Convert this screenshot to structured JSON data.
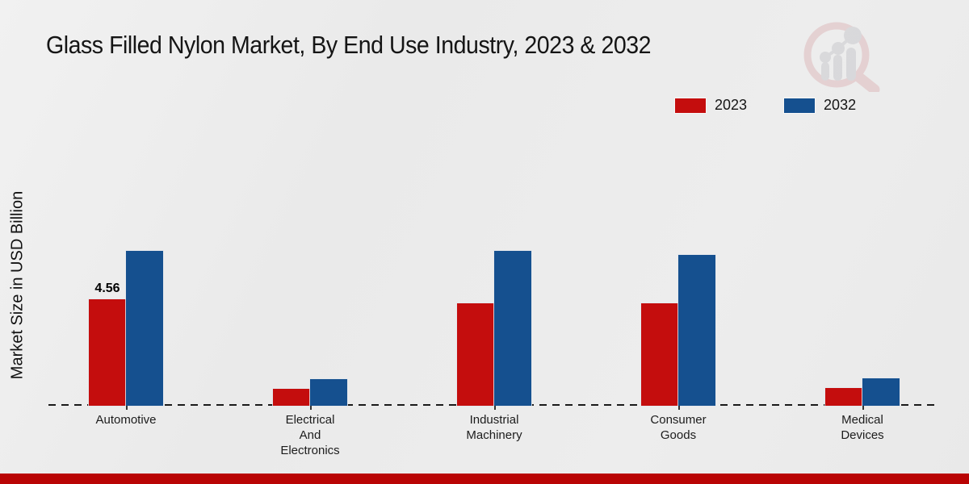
{
  "title": "Glass Filled Nylon Market, By End Use Industry, 2023 & 2032",
  "y_axis_label": "Market Size in USD Billion",
  "legend": [
    {
      "label": "2023",
      "color": "#c40d0d"
    },
    {
      "label": "2032",
      "color": "#15508f"
    }
  ],
  "colors": {
    "series_2023": "#c40d0d",
    "series_2032": "#15508f",
    "axis_line": "#1a1a1a",
    "bottom_band": "#b90404",
    "background": "#ececec",
    "watermark_pink": "#ddb6b8",
    "watermark_gray": "#c6c6cb"
  },
  "chart_data": {
    "type": "bar",
    "categories": [
      "Automotive",
      "Electrical And Electronics",
      "Industrial Machinery",
      "Consumer Goods",
      "Medical Devices"
    ],
    "series": [
      {
        "name": "2023",
        "color": "#c40d0d",
        "values": [
          4.56,
          0.72,
          4.38,
          4.38,
          0.75
        ]
      },
      {
        "name": "2032",
        "color": "#15508f",
        "values": [
          6.62,
          1.14,
          6.62,
          6.45,
          1.17
        ]
      }
    ],
    "title": "Glass Filled Nylon Market, By End Use Industry, 2023 & 2032",
    "xlabel": "",
    "ylabel": "Market Size in USD Billion",
    "ylim": [
      0,
      7
    ],
    "grid": false,
    "y_axis_ticks_visible": false,
    "baseline_style": "dashed",
    "legend_position": "top-right",
    "data_labels": [
      {
        "series": "2023",
        "category": "Automotive",
        "value": "4.56"
      }
    ]
  }
}
